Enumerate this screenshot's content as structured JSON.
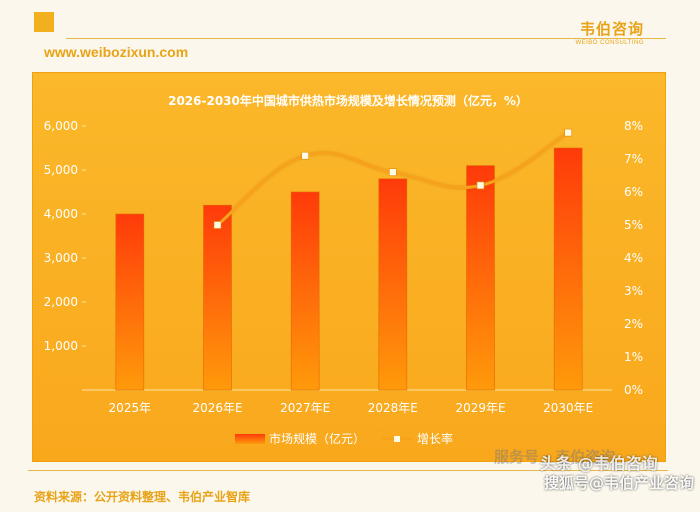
{
  "header": {
    "url": "www.weibozixun.com",
    "brand_name": "韦伯咨询",
    "brand_sub": "WEIBO CONSULTING"
  },
  "footer": {
    "source": "资料来源：公开资料整理、韦伯产业智库"
  },
  "watermarks": {
    "line1": "服务号 · 韦伯咨询",
    "line2": "头条 @韦伯咨询",
    "line3": "搜狐号@韦伯产业咨询"
  },
  "colors": {
    "bar_top": "#ff3a0a",
    "bar_bottom": "#ff9a0a",
    "line": "#f7a21a",
    "marker": "#fffbe6",
    "panel": "#fbb22a"
  },
  "chart_data": {
    "type": "bar+line",
    "title": "2026-2030年中国城市供热市场规模及增长情况预测（亿元，%）",
    "categories": [
      "2025年",
      "2026年E",
      "2027年E",
      "2028年E",
      "2029年E",
      "2030年E"
    ],
    "series": [
      {
        "name": "市场规模（亿元）",
        "type": "bar",
        "axis": "left",
        "values": [
          4000,
          4200,
          4500,
          4800,
          5100,
          5500
        ]
      },
      {
        "name": "增长率",
        "type": "line",
        "axis": "right",
        "values": [
          null,
          5.0,
          7.1,
          6.6,
          6.2,
          7.8
        ]
      }
    ],
    "y_left": {
      "min": 0,
      "max": 6000,
      "ticks": [
        "",
        "1,000",
        "2,000",
        "3,000",
        "4,000",
        "5,000",
        "6,000"
      ]
    },
    "y_right": {
      "min": 0,
      "max": 8,
      "ticks": [
        "0%",
        "1%",
        "2%",
        "3%",
        "4%",
        "5%",
        "6%",
        "7%",
        "8%"
      ]
    },
    "legend_position": "bottom",
    "grid": false
  }
}
